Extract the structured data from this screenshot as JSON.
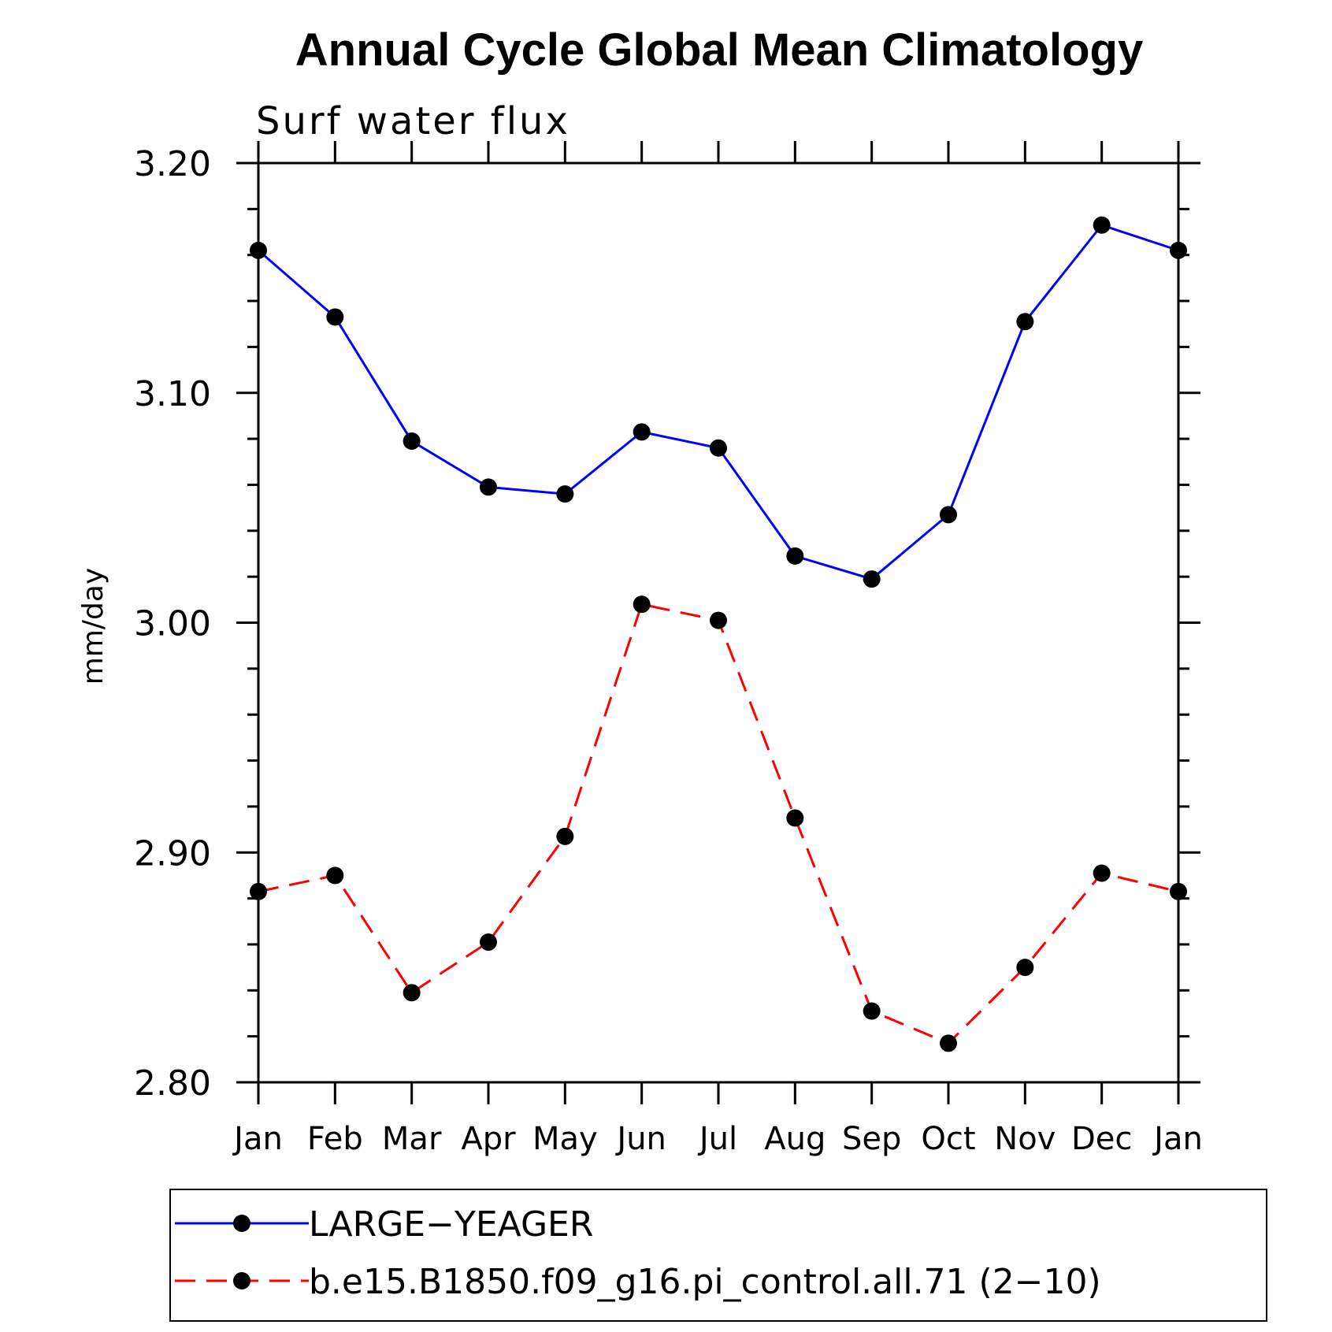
{
  "chart_data": {
    "type": "line",
    "title": "Annual Cycle Global Mean Climatology",
    "subtitle": "Surf water flux",
    "xlabel": "",
    "ylabel": "mm/day",
    "categories": [
      "Jan",
      "Feb",
      "Mar",
      "Apr",
      "May",
      "Jun",
      "Jul",
      "Aug",
      "Sep",
      "Oct",
      "Nov",
      "Dec",
      "Jan"
    ],
    "ylim": [
      2.8,
      3.2
    ],
    "yticks": [
      "3.20",
      "3.10",
      "3.00",
      "2.90",
      "2.80"
    ],
    "ytick_values": [
      3.2,
      3.1,
      3.0,
      2.9,
      2.8
    ],
    "grid": false,
    "legend_position": "bottom",
    "series": [
      {
        "name": "LARGE−YEAGER",
        "color": "#0000ff",
        "dash": "solid",
        "marker": "filled-circle",
        "values": [
          3.162,
          3.133,
          3.079,
          3.059,
          3.056,
          3.083,
          3.076,
          3.029,
          3.019,
          3.047,
          3.131,
          3.173,
          3.162
        ]
      },
      {
        "name": "b.e15.B1850.f09_g16.pi_control.all.71 (2−10)",
        "color": "#ff0000",
        "dash": "dashed",
        "marker": "filled-circle",
        "values": [
          2.883,
          2.89,
          2.839,
          2.861,
          2.907,
          3.008,
          3.001,
          2.915,
          2.831,
          2.817,
          2.85,
          2.891,
          2.883
        ]
      }
    ]
  }
}
